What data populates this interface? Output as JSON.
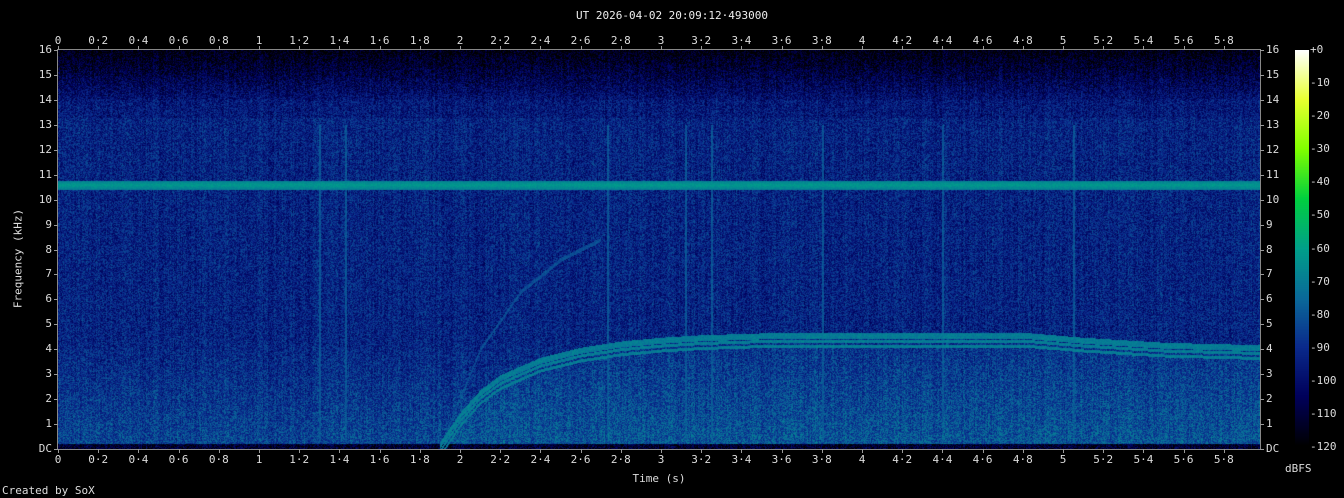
{
  "chart_data": {
    "type": "heatmap",
    "title": "UT 2026-04-02 20:09:12·493000",
    "xlabel": "Time (s)",
    "ylabel": "Frequency (kHz)",
    "xlim": [
      0,
      5.98
    ],
    "ylim": [
      0,
      16
    ],
    "x_ticks": [
      "0",
      "0·2",
      "0·4",
      "0·6",
      "0·8",
      "1",
      "1·2",
      "1·4",
      "1·6",
      "1·8",
      "2",
      "2·2",
      "2·4",
      "2·6",
      "2·8",
      "3",
      "3·2",
      "3·4",
      "3·6",
      "3·8",
      "4",
      "4·2",
      "4·4",
      "4·6",
      "4·8",
      "5",
      "5·2",
      "5·4",
      "5·6",
      "5·8"
    ],
    "y_ticks": [
      "DC",
      "1",
      "2",
      "3",
      "4",
      "5",
      "6",
      "7",
      "8",
      "9",
      "10",
      "11",
      "12",
      "13",
      "14",
      "15",
      "16"
    ],
    "colorbar": {
      "label": "dBFS",
      "range": [
        -120,
        0
      ],
      "ticks": [
        "+0",
        "-10",
        "-20",
        "-30",
        "-40",
        "-50",
        "-60",
        "-70",
        "-80",
        "-90",
        "-100",
        "-110",
        "-120"
      ],
      "colors": [
        "#000000",
        "#00005a",
        "#0a2a8c",
        "#0a6a9a",
        "#00a08a",
        "#00d040",
        "#80ff00",
        "#e8ff30",
        "#ffffff"
      ]
    },
    "features": {
      "steady_tone_khz": 10.6,
      "sweep": {
        "t": [
          1.9,
          2.0,
          2.1,
          2.2,
          2.4,
          2.6,
          2.8,
          3.0,
          3.2,
          3.6,
          4.0,
          4.8,
          5.1,
          5.5,
          5.98
        ],
        "f_khz": [
          0.1,
          1.3,
          2.2,
          2.8,
          3.5,
          3.9,
          4.15,
          4.3,
          4.4,
          4.5,
          4.5,
          4.5,
          4.3,
          4.1,
          4.0
        ]
      },
      "faint_trace": {
        "t": [
          1.9,
          2.1,
          2.3,
          2.5,
          2.7
        ],
        "f_khz": [
          0.1,
          4.0,
          6.3,
          7.6,
          8.4
        ]
      },
      "clicks_s": [
        1.3,
        1.43,
        2.73,
        3.12,
        3.25,
        3.8,
        4.4,
        5.05
      ]
    }
  },
  "credit": "Created by SoX"
}
